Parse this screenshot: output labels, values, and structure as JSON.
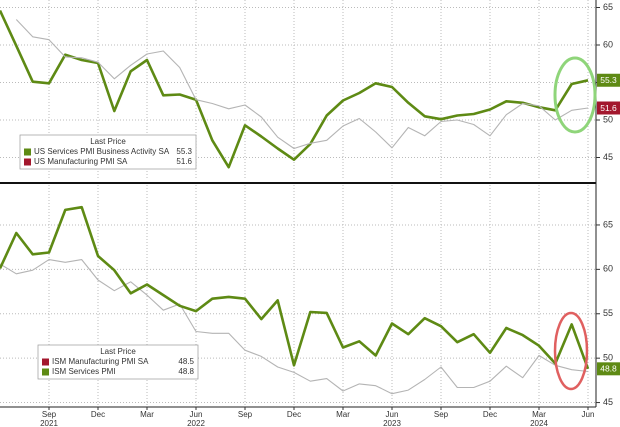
{
  "chart_data": [
    {
      "type": "line",
      "legend_title": "Last Price",
      "x": [
        "2021-06",
        "2021-07",
        "2021-08",
        "2021-09",
        "2021-10",
        "2021-11",
        "2021-12",
        "2022-01",
        "2022-02",
        "2022-03",
        "2022-04",
        "2022-05",
        "2022-06",
        "2022-07",
        "2022-08",
        "2022-09",
        "2022-10",
        "2022-11",
        "2022-12",
        "2023-01",
        "2023-02",
        "2023-03",
        "2023-04",
        "2023-05",
        "2023-06",
        "2023-07",
        "2023-08",
        "2023-09",
        "2023-10",
        "2023-11",
        "2023-12",
        "2024-01",
        "2024-02",
        "2024-03",
        "2024-04",
        "2024-05",
        "2024-06"
      ],
      "xlim": [
        "2021-06",
        "2024-06"
      ],
      "ylim": [
        42,
        66
      ],
      "yticks": [
        45,
        50,
        55,
        60,
        65
      ],
      "grid": true,
      "series": [
        {
          "name": "US Services PMI Business Activity SA",
          "color": "#5e8a14",
          "line_color": "#5e8a14",
          "last_tag": true,
          "values": [
            64.6,
            59.9,
            55.1,
            54.9,
            58.7,
            58.0,
            57.6,
            51.2,
            56.5,
            58.0,
            53.3,
            53.4,
            52.7,
            47.3,
            43.7,
            49.3,
            47.8,
            46.2,
            44.7,
            46.8,
            50.6,
            52.6,
            53.6,
            54.9,
            54.4,
            52.3,
            50.5,
            50.1,
            50.6,
            50.8,
            51.4,
            52.5,
            52.3,
            51.7,
            51.3,
            54.8,
            55.3
          ]
        },
        {
          "name": "US Manufacturing PMI SA",
          "color": "#a3172d",
          "line_color": "#b4b4b4",
          "last_tag": true,
          "values": [
            null,
            63.4,
            61.1,
            60.7,
            58.4,
            58.3,
            57.7,
            55.5,
            57.3,
            58.8,
            59.2,
            57.0,
            52.7,
            52.2,
            51.5,
            52.0,
            50.4,
            47.7,
            46.2,
            46.9,
            47.3,
            49.2,
            50.2,
            48.4,
            46.3,
            49.0,
            47.9,
            49.8,
            50.0,
            49.4,
            47.9,
            50.7,
            52.2,
            51.9,
            50.0,
            51.3,
            51.6
          ]
        }
      ]
    },
    {
      "type": "line",
      "legend_title": "Last Price",
      "x": [
        "2021-06",
        "2021-07",
        "2021-08",
        "2021-09",
        "2021-10",
        "2021-11",
        "2021-12",
        "2022-01",
        "2022-02",
        "2022-03",
        "2022-04",
        "2022-05",
        "2022-06",
        "2022-07",
        "2022-08",
        "2022-09",
        "2022-10",
        "2022-11",
        "2022-12",
        "2023-01",
        "2023-02",
        "2023-03",
        "2023-04",
        "2023-05",
        "2023-06",
        "2023-07",
        "2023-08",
        "2023-09",
        "2023-10",
        "2023-11",
        "2023-12",
        "2024-01",
        "2024-02",
        "2024-03",
        "2024-04",
        "2024-05",
        "2024-06"
      ],
      "xlim": [
        "2021-06",
        "2024-06"
      ],
      "xticks": [
        {
          "value": "2021-09",
          "label": "Sep"
        },
        {
          "value": "2021-12",
          "label": "Dec"
        },
        {
          "value": "2022-03",
          "label": "Mar"
        },
        {
          "value": "2022-06",
          "label": "Jun"
        },
        {
          "value": "2022-09",
          "label": "Sep"
        },
        {
          "value": "2022-12",
          "label": "Dec"
        },
        {
          "value": "2023-03",
          "label": "Mar"
        },
        {
          "value": "2023-06",
          "label": "Jun"
        },
        {
          "value": "2023-09",
          "label": "Sep"
        },
        {
          "value": "2023-12",
          "label": "Dec"
        },
        {
          "value": "2024-03",
          "label": "Mar"
        },
        {
          "value": "2024-06",
          "label": "Jun"
        }
      ],
      "xyears": [
        {
          "value": "2021-09",
          "label": "2021"
        },
        {
          "value": "2022-06",
          "label": "2022"
        },
        {
          "value": "2023-06",
          "label": "2023"
        },
        {
          "value": "2024-03",
          "label": "2024"
        }
      ],
      "ylim": [
        44.5,
        69.5
      ],
      "yticks": [
        45,
        50,
        55,
        60,
        65
      ],
      "grid": true,
      "series": [
        {
          "name": "ISM Manufacturing PMI SA",
          "color": "#a3172d",
          "line_color": "#b4b4b4",
          "last_tag": false,
          "values": [
            60.6,
            59.5,
            59.9,
            61.1,
            60.8,
            61.1,
            58.8,
            57.6,
            58.6,
            57.1,
            55.4,
            56.1,
            53.0,
            52.8,
            52.8,
            50.9,
            50.2,
            49.0,
            48.4,
            47.4,
            47.7,
            46.3,
            47.1,
            46.9,
            46.0,
            46.4,
            47.6,
            49.0,
            46.7,
            46.7,
            47.4,
            49.1,
            47.8,
            50.3,
            49.2,
            48.7,
            48.5
          ]
        },
        {
          "name": "ISM Services PMI",
          "color": "#5e8a14",
          "line_color": "#5e8a14",
          "last_tag": true,
          "values": [
            60.1,
            64.1,
            61.7,
            61.9,
            66.7,
            67.0,
            61.5,
            59.9,
            57.3,
            58.3,
            57.1,
            55.9,
            55.3,
            56.7,
            56.9,
            56.7,
            54.4,
            56.5,
            49.2,
            55.2,
            55.1,
            51.2,
            51.9,
            50.3,
            53.9,
            52.7,
            54.5,
            53.6,
            51.8,
            52.7,
            50.6,
            53.4,
            52.6,
            51.4,
            49.4,
            53.8,
            48.8
          ]
        }
      ]
    }
  ]
}
